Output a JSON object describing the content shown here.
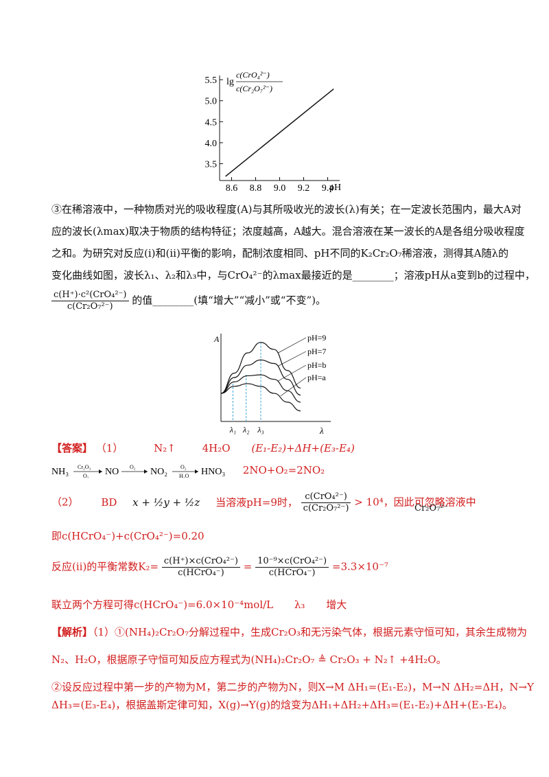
{
  "chart1": {
    "y_label": "lg c(CrO₄²⁻)/c(Cr₂O₇²⁻)",
    "x_label": "pH",
    "y_ticks": [
      "5.5",
      "5.0",
      "4.5",
      "4.0",
      "3.5"
    ],
    "x_ticks": [
      "8.6",
      "8.8",
      "9.0",
      "9.2",
      "9.4"
    ]
  },
  "chart_data": [
    {
      "type": "line",
      "xlabel": "pH",
      "ylabel": "lg c(CrO₄²⁻)/c(Cr₂O₇²⁻)",
      "xlim": [
        8.5,
        9.5
      ],
      "ylim": [
        3.1,
        5.6
      ],
      "series": [
        {
          "x": [
            8.55,
            9.45
          ],
          "y": [
            3.2,
            5.28
          ]
        }
      ]
    },
    {
      "type": "line",
      "xlabel": "λ",
      "ylabel": "A",
      "series": [
        {
          "name": "pH=9",
          "x": [
            0,
            1,
            2,
            3,
            4,
            5,
            6
          ],
          "y": [
            0.32,
            0.55,
            0.78,
            0.9,
            0.82,
            0.58,
            0.38
          ]
        },
        {
          "name": "pH=7",
          "x": [
            0,
            1,
            2,
            3,
            4,
            5,
            6
          ],
          "y": [
            0.32,
            0.5,
            0.64,
            0.7,
            0.66,
            0.48,
            0.3
          ]
        },
        {
          "name": "pH=b",
          "x": [
            0,
            1,
            2,
            3,
            4,
            5,
            6
          ],
          "y": [
            0.32,
            0.45,
            0.52,
            0.53,
            0.48,
            0.35,
            0.22
          ]
        },
        {
          "name": "pH=a",
          "x": [
            0,
            1,
            2,
            3,
            4,
            5,
            6
          ],
          "y": [
            0.32,
            0.4,
            0.43,
            0.4,
            0.32,
            0.22,
            0.12
          ]
        }
      ]
    }
  ],
  "chart2": {
    "y_label": "A",
    "x_label": "λ",
    "legend": [
      "pH=9",
      "pH=7",
      "pH=b",
      "pH=a"
    ],
    "x_ticks": [
      "λ₁",
      "λ₂",
      "λ₃"
    ]
  },
  "question": {
    "line1": "③在稀溶液中，一种物质对光的吸收程度(A)与其所吸收光的波长(λ)有关；在一定波长范围内，最大A对",
    "line2": "应的波长(λmax)取决于物质的结构特征；浓度越高，A越大。混合溶液在某一波长的A是各组分吸收程度",
    "line3": "之和。为研究对反应(ⅰ)和(ⅱ)平衡的影响，配制浓度相同、pH不同的K₂Cr₂O₇稀溶液，测得其A随λ的",
    "line4": "变化曲线如图，波长λ₁、λ₂和λ₃中，与CrO₄²⁻的λmax最接近的是________；溶液pH从a变到b的过程中，",
    "frac_num": "c(H⁺)·c²(CrO₄²⁻)",
    "frac_den": "c(Cr₂O₇²⁻)",
    "line5_tail": "的值________(填“增大”“减小”或“不变”)。"
  },
  "answer": {
    "label": "【答案】",
    "p1": "（1）",
    "a1": "N₂↑",
    "a2": "4H₂O",
    "a3": "(E₁-E₂)+ΔH+(E₃-E₄)",
    "chain": "NH₃ ⟶ NO ⟶ NO₂ ⟶ HNO₃",
    "cond1_top": "Cr₂O₃",
    "cond1_bot": "O₂",
    "cond2_top": "O₂",
    "cond3_top": "O₂",
    "cond3_bot": "H₂O",
    "eq2": "2NO+O₂=2NO₂",
    "p2": "（2）",
    "bd": "BD",
    "xyz": "x + ½y + ½z",
    "ph9": "当溶液pH=9时，",
    "ratio_num": "c(CrO₄²⁻)",
    "ratio_den": "c(Cr₂O₇²⁻)",
    "ratio_tail": "> 10⁴，因此可忽略溶液中",
    "cr2o7": "Cr₂O₇²⁻",
    "sum_line": "即c(HCrO₄⁻)+c(CrO₄²⁻)=0.20",
    "k2_lead": "反应(ii)的平衡常数K₂=",
    "k2_num1": "c(H⁺)×c(CrO₄²⁻)",
    "k2_den1": "c(HCrO₄⁻)",
    "k2_num2": "10⁻⁹×c(CrO₄²⁻)",
    "k2_den2": "c(HCrO₄⁻)",
    "k2_val": "=3.3×10⁻⁷",
    "last": "联立两个方程可得c(HCrO₄⁻)=6.0×10⁻⁴mol/L",
    "lambda3": "λ₃",
    "inc": "增大"
  },
  "analysis": {
    "label": "【解析】",
    "l1": "（1）①(NH₄)₂Cr₂O₇分解过程中，生成Cr₂O₃和无污染气体，根据元素守恒可知，其余生成物为",
    "l2": "N₂、H₂O，根据原子守恒可知反应方程式为(NH₄)₂Cr₂O₇ ≜ Cr₂O₃ + N₂↑ +4H₂O。",
    "l3": "②设反应过程中第一步的产物为M，第二步的产物为N，则X→M  ΔH₁=(E₁-E₂)，M→N  ΔH₂=ΔH，N→Y",
    "l4": "ΔH₃=(E₃-E₄)，根据盖斯定律可知，X(g)→Y(g)的焓变为ΔH₁+ΔH₂+ΔH₃=(E₁-E₂)+ΔH+(E₃-E₄)。"
  }
}
